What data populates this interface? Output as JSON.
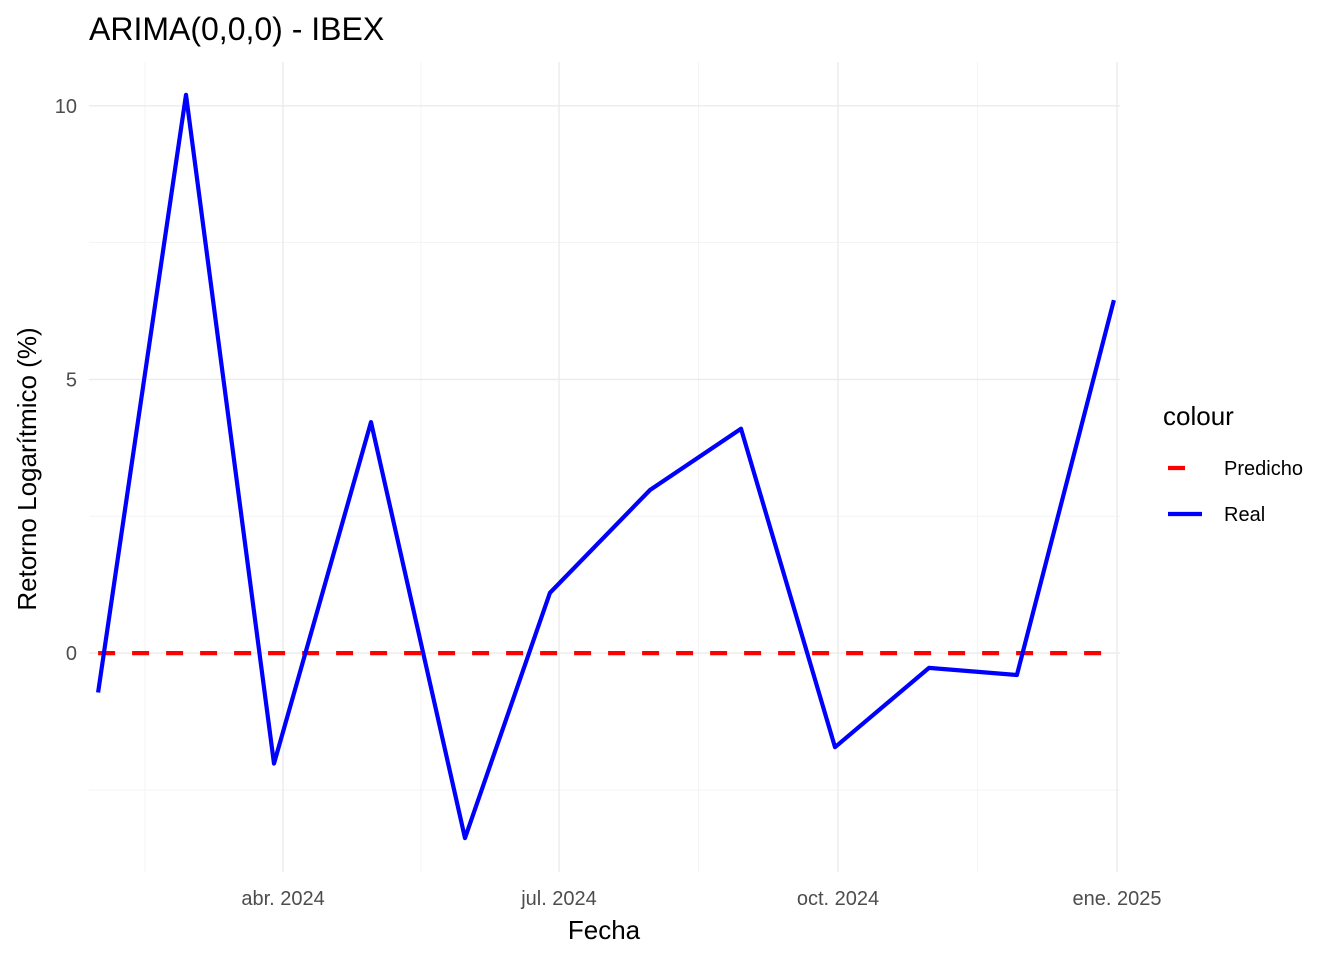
{
  "chart_data": {
    "type": "line",
    "title": "ARIMA(0,0,0) - IBEX",
    "xlabel": "Fecha",
    "ylabel": "Retorno Logarítmico (%)",
    "x": [
      "2024-01-31",
      "2024-02-29",
      "2024-03-29",
      "2024-04-30",
      "2024-05-31",
      "2024-06-28",
      "2024-07-31",
      "2024-08-30",
      "2024-09-30",
      "2024-10-31",
      "2024-11-29",
      "2024-12-31"
    ],
    "x_ticks": [
      {
        "date": "2024-04-01",
        "label": "abr. 2024"
      },
      {
        "date": "2024-07-01",
        "label": "jul. 2024"
      },
      {
        "date": "2024-10-01",
        "label": "oct. 2024"
      },
      {
        "date": "2025-01-01",
        "label": "ene. 2025"
      }
    ],
    "y_ticks": [
      0,
      5,
      10
    ],
    "xlim": [
      "2024-01-28",
      "2025-01-02"
    ],
    "ylim": [
      -4,
      10.8
    ],
    "grid": true,
    "legend": {
      "title": "colour",
      "placement": "right",
      "items": [
        {
          "label": "Predicho",
          "color": "#ff0000",
          "style": "dashed"
        },
        {
          "label": "Real",
          "color": "#0000ff",
          "style": "solid"
        }
      ]
    },
    "series": [
      {
        "name": "Predicho",
        "color": "#ff0000",
        "style": "dashed",
        "values": [
          0,
          0,
          0,
          0,
          0,
          0,
          0,
          0,
          0,
          0,
          0,
          0
        ]
      },
      {
        "name": "Real",
        "color": "#0000ff",
        "style": "solid",
        "values": [
          -0.72,
          10.2,
          -2.02,
          4.22,
          -3.38,
          1.1,
          2.98,
          4.1,
          -1.72,
          -0.27,
          -0.4,
          6.45
        ]
      }
    ]
  }
}
